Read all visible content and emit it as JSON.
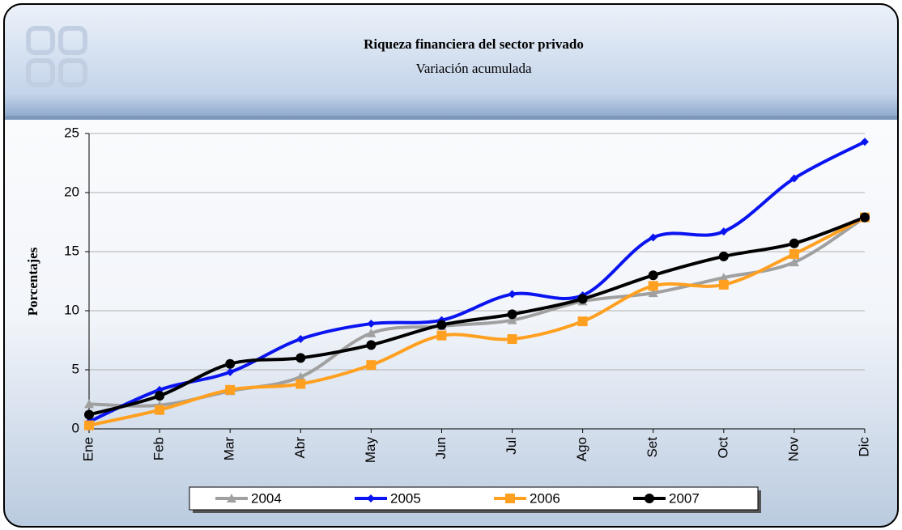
{
  "chart_data": {
    "type": "line",
    "title": "Riqueza financiera del sector privado",
    "subtitle": "Variación acumulada",
    "y_label": "Porcentajes",
    "categories": [
      "Ene",
      "Feb",
      "Mar",
      "Abr",
      "May",
      "Jun",
      "Jul",
      "Ago",
      "Set",
      "Oct",
      "Nov",
      "Dic"
    ],
    "series": [
      {
        "name": "2004",
        "color": "#a0a0a0",
        "marker": "triangle",
        "values": [
          2.1,
          2.0,
          3.2,
          4.4,
          8.1,
          8.7,
          9.2,
          10.8,
          11.5,
          12.8,
          14.1,
          17.9
        ]
      },
      {
        "name": "2005",
        "color": "#0a14f0",
        "marker": "diamond",
        "values": [
          0.6,
          3.3,
          4.8,
          7.6,
          8.9,
          9.2,
          11.4,
          11.3,
          16.2,
          16.7,
          21.2,
          24.3
        ]
      },
      {
        "name": "2006",
        "color": "#ffa020",
        "marker": "square",
        "values": [
          0.3,
          1.6,
          3.3,
          3.8,
          5.4,
          7.9,
          7.6,
          9.1,
          12.1,
          12.2,
          14.8,
          17.9
        ]
      },
      {
        "name": "2007",
        "color": "#000000",
        "marker": "circle",
        "values": [
          1.2,
          2.8,
          5.5,
          6.0,
          7.1,
          8.8,
          9.7,
          11.0,
          13.0,
          14.6,
          15.7,
          17.9
        ]
      }
    ],
    "ylim": [
      0,
      25
    ],
    "yticks": [
      0,
      5,
      10,
      15,
      20,
      25
    ],
    "grid": true,
    "smooth": true,
    "legend": "bottom"
  }
}
